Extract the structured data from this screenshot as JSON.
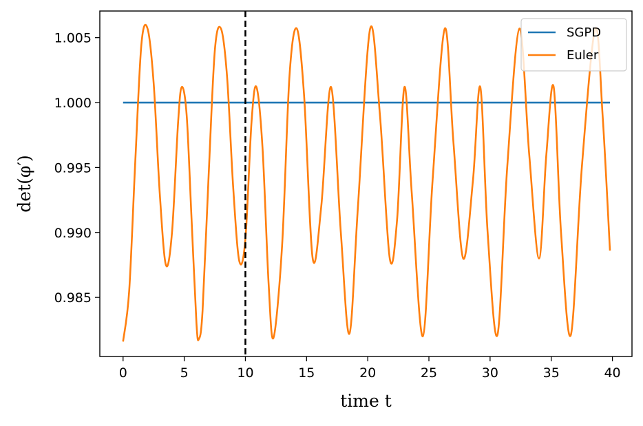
{
  "chart_data": {
    "type": "line",
    "xlabel": "time t",
    "ylabel": "det(φ′)",
    "xlim": [
      -1.9,
      41.6
    ],
    "ylim": [
      0.98045,
      1.00705
    ],
    "xticks": [
      0,
      5,
      10,
      15,
      20,
      25,
      30,
      35,
      40
    ],
    "yticks": [
      0.985,
      0.99,
      0.995,
      1.0,
      1.005
    ],
    "xtick_labels": [
      "0",
      "5",
      "10",
      "15",
      "20",
      "25",
      "30",
      "35",
      "40"
    ],
    "ytick_labels": [
      "0.985",
      "0.990",
      "0.995",
      "1.000",
      "1.005"
    ],
    "legend_position": "top-right",
    "vertical_line": {
      "x": 10,
      "style": "dashed",
      "color": "#000000"
    },
    "series": [
      {
        "name": "SGPD",
        "color": "#1f77b4",
        "x": [
          0,
          39.8
        ],
        "y": [
          1.0,
          1.0
        ]
      },
      {
        "name": "Euler",
        "color": "#ff7f0e",
        "x": [
          0.0,
          0.5,
          1.0,
          1.5,
          2.0,
          2.5,
          3.0,
          3.5,
          4.0,
          4.5,
          4.8,
          5.2,
          5.6,
          6.0,
          6.2,
          6.5,
          7.0,
          7.5,
          8.0,
          8.5,
          9.0,
          9.5,
          10.0,
          10.5,
          10.9,
          11.4,
          11.9,
          12.3,
          13.0,
          13.6,
          14.2,
          14.8,
          15.5,
          16.2,
          17.0,
          17.8,
          18.5,
          19.2,
          20.2,
          21.0,
          21.8,
          22.4,
          23.0,
          23.6,
          24.5,
          25.3,
          26.3,
          27.0,
          27.8,
          28.6,
          29.2,
          29.8,
          30.6,
          31.4,
          32.4,
          33.2,
          34.0,
          34.6,
          35.2,
          35.8,
          36.6,
          37.5,
          38.6,
          39.2,
          39.8
        ],
        "y": [
          0.9816,
          0.9855,
          0.9955,
          1.0045,
          1.0057,
          1.0015,
          0.993,
          0.9875,
          0.99,
          0.9985,
          1.0012,
          0.999,
          0.991,
          0.983,
          0.9818,
          0.984,
          0.9945,
          1.004,
          1.0057,
          1.002,
          0.9935,
          0.9878,
          0.9895,
          0.9985,
          1.0012,
          0.9965,
          0.986,
          0.9819,
          0.989,
          1.002,
          1.0057,
          1.0005,
          0.988,
          0.992,
          1.0012,
          0.99,
          0.9822,
          0.992,
          1.0057,
          0.999,
          0.988,
          0.991,
          1.0012,
          0.993,
          0.982,
          0.994,
          1.0057,
          0.997,
          0.988,
          0.994,
          1.0012,
          0.99,
          0.9821,
          0.995,
          1.0057,
          0.996,
          0.988,
          0.996,
          1.0012,
          0.99,
          0.9821,
          0.995,
          1.0057,
          0.999,
          0.9886
        ]
      }
    ]
  }
}
